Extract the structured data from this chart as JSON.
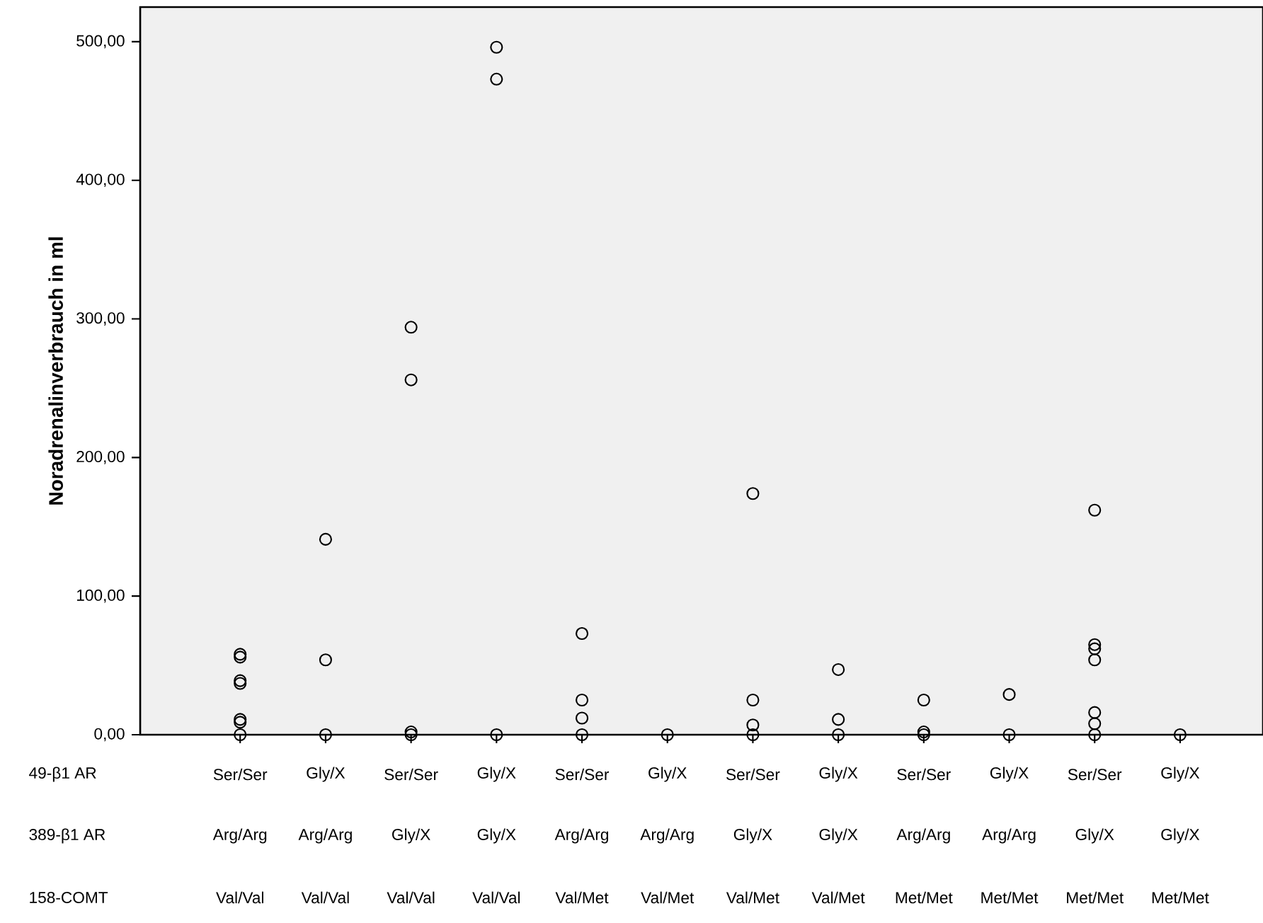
{
  "chart_data": {
    "type": "scatter",
    "ylabel": "**Noradrenalinverbrauch in ml**",
    "categories": [
      "Ser/Ser",
      "Gly/X",
      "Ser/Ser",
      "Gly/X",
      "Ser/Ser",
      "Gly/X",
      "Ser/Ser",
      "Gly/X",
      "Ser/Ser",
      "Gly/X",
      "Ser/Ser",
      "Gly/X"
    ],
    "annotations": [
      "49-β1 AR",
      "389-β1 AR",
      "Arg/Arg",
      "Arg/Arg",
      "Gly/X",
      "Gly/X",
      "Arg/Arg",
      "Arg/Arg",
      "Gly/X",
      "Gly/X",
      "Arg/Arg",
      "Arg/Arg",
      "Gly/X",
      "Gly/X",
      "158-COMT",
      "Val/Val",
      "Val/Val",
      "Val/Val",
      "Val/Val",
      "Val/Met",
      "Val/Met",
      "Val/Met",
      "Val/Met",
      "Met/Met",
      "Met/Met",
      "Met/Met",
      "Met/Met"
    ],
    "series": [
      {
        "color": "#000000",
        "values": [
          58,
          141,
          294,
          496,
          73,
          0,
          174,
          47,
          25,
          29,
          162,
          0
        ]
      },
      {
        "color": "#000000",
        "values": [
          56,
          54,
          256,
          473,
          25,
          null,
          25,
          11,
          2,
          0,
          65,
          null
        ]
      },
      {
        "color": "#000000",
        "values": [
          39,
          0,
          2,
          0,
          12,
          null,
          7,
          0,
          0,
          null,
          62,
          null
        ]
      },
      {
        "color": "#000000",
        "values": [
          37,
          null,
          0,
          null,
          0,
          null,
          0,
          null,
          null,
          null,
          54,
          null
        ]
      },
      {
        "color": "#000000",
        "values": [
          11,
          null,
          null,
          null,
          null,
          null,
          null,
          null,
          null,
          null,
          16,
          null
        ]
      },
      {
        "color": "#000000",
        "values": [
          9,
          null,
          null,
          null,
          null,
          null,
          null,
          null,
          null,
          null,
          8,
          null
        ]
      },
      {
        "color": "#000000",
        "values": [
          0,
          null,
          null,
          null,
          null,
          null,
          null,
          null,
          null,
          null,
          0,
          null
        ]
      }
    ],
    "ylim": [
      0,
      525
    ],
    "yticks": [
      {
        "value": 0,
        "label": "0,00"
      },
      {
        "value": 100,
        "label": "100,00"
      },
      {
        "value": 200,
        "label": "200,00"
      },
      {
        "value": 300,
        "label": "300,00"
      },
      {
        "value": 400,
        "label": "400,00"
      },
      {
        "value": 500,
        "label": "500,00"
      }
    ],
    "marker": "circle"
  }
}
